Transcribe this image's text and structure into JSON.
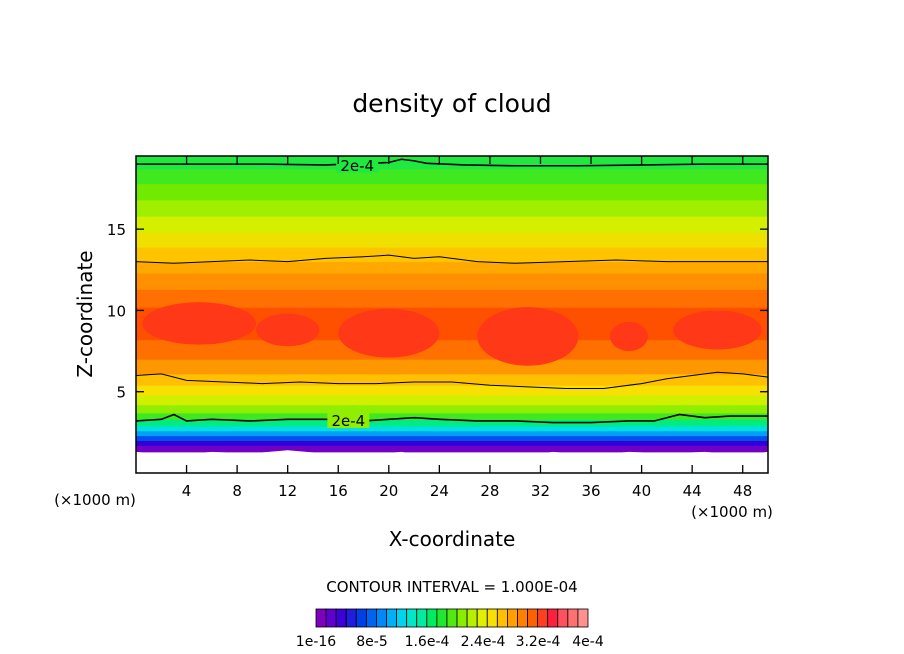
{
  "chart_data": {
    "type": "heatmap",
    "title": "density of cloud",
    "xlabel": "X-coordinate",
    "ylabel": "Z-coordinate",
    "x_unit": "(×1000 m)",
    "z_unit": "(×1000 m)",
    "xlim": [
      0,
      50
    ],
    "ylim": [
      0,
      19.5
    ],
    "x_ticks": [
      4,
      8,
      12,
      16,
      20,
      24,
      28,
      32,
      36,
      40,
      44,
      48
    ],
    "y_ticks": [
      5,
      10,
      15
    ],
    "contour_interval_text": "CONTOUR INTERVAL = 1.000E-04",
    "contour_labels": [
      {
        "text": "2e-4",
        "x": 17.5,
        "z": 18.9
      },
      {
        "text": "2e-4",
        "x": 16.8,
        "z": 3.2
      }
    ],
    "colorbar": {
      "colors": [
        "#8000c0",
        "#6000d0",
        "#3c00d8",
        "#1e1edc",
        "#0040e6",
        "#0064f0",
        "#0088f8",
        "#00b0f8",
        "#00d4ee",
        "#00e8c8",
        "#00eca0",
        "#00ec60",
        "#20e830",
        "#50ea10",
        "#88ee00",
        "#b4f000",
        "#e0f000",
        "#f8e000",
        "#ffc000",
        "#ffa000",
        "#ff8000",
        "#ff6000",
        "#ff4020",
        "#ff2040",
        "#ff5060",
        "#ff7070",
        "#ff9090"
      ],
      "tick_labels": [
        "1e-16",
        "8e-5",
        "1.6e-4",
        "2.4e-4",
        "3.2e-4",
        "4e-4"
      ]
    },
    "bands": [
      {
        "z0": 0.0,
        "z1": 1.3,
        "color": "#ffffff"
      },
      {
        "z0": 1.3,
        "z1": 1.7,
        "color": "#7000c8"
      },
      {
        "z0": 1.7,
        "z1": 2.0,
        "color": "#3000d8"
      },
      {
        "z0": 2.0,
        "z1": 2.3,
        "color": "#0050ea"
      },
      {
        "z0": 2.3,
        "z1": 2.6,
        "color": "#00a0f8"
      },
      {
        "z0": 2.6,
        "z1": 2.9,
        "color": "#00e0e0"
      },
      {
        "z0": 2.9,
        "z1": 3.3,
        "color": "#00ec80"
      },
      {
        "z0": 3.3,
        "z1": 3.7,
        "color": "#40e820"
      },
      {
        "z0": 3.7,
        "z1": 4.2,
        "color": "#90ee00"
      },
      {
        "z0": 4.2,
        "z1": 4.8,
        "color": "#d0f000"
      },
      {
        "z0": 4.8,
        "z1": 5.4,
        "color": "#f8e000"
      },
      {
        "z0": 5.4,
        "z1": 6.1,
        "color": "#ffc000"
      },
      {
        "z0": 6.1,
        "z1": 7.0,
        "color": "#ff9800"
      },
      {
        "z0": 7.0,
        "z1": 8.2,
        "color": "#ff7000"
      },
      {
        "z0": 8.2,
        "z1": 10.2,
        "color": "#ff5000"
      },
      {
        "z0": 10.2,
        "z1": 11.3,
        "color": "#ff7000"
      },
      {
        "z0": 11.3,
        "z1": 12.3,
        "color": "#ff9000"
      },
      {
        "z0": 12.3,
        "z1": 13.0,
        "color": "#ffa800"
      },
      {
        "z0": 13.0,
        "z1": 13.9,
        "color": "#ffc400"
      },
      {
        "z0": 13.9,
        "z1": 14.8,
        "color": "#f0e000"
      },
      {
        "z0": 14.8,
        "z1": 15.8,
        "color": "#d4f000"
      },
      {
        "z0": 15.8,
        "z1": 16.8,
        "color": "#a0ee00"
      },
      {
        "z0": 16.8,
        "z1": 17.8,
        "color": "#70ea00"
      },
      {
        "z0": 17.8,
        "z1": 18.7,
        "color": "#40e820"
      },
      {
        "z0": 18.7,
        "z1": 19.5,
        "color": "#20e840"
      }
    ],
    "cores": [
      {
        "x": 5.0,
        "z": 9.2,
        "rx": 4.5,
        "rz": 1.3,
        "color": "#ff3818"
      },
      {
        "x": 12.0,
        "z": 8.8,
        "rx": 2.5,
        "rz": 1.0,
        "color": "#ff3818"
      },
      {
        "x": 20.0,
        "z": 8.6,
        "rx": 4.0,
        "rz": 1.5,
        "color": "#ff3818"
      },
      {
        "x": 31.0,
        "z": 8.4,
        "rx": 4.0,
        "rz": 1.8,
        "color": "#ff3818"
      },
      {
        "x": 39.0,
        "z": 8.4,
        "rx": 1.5,
        "rz": 0.9,
        "color": "#ff3818"
      },
      {
        "x": 46.0,
        "z": 8.8,
        "rx": 3.5,
        "rz": 1.2,
        "color": "#ff3818"
      }
    ],
    "contour_lines": [
      {
        "name": "upper",
        "x": [
          0,
          5,
          10,
          15,
          20,
          21,
          22,
          23,
          26,
          30,
          35,
          40,
          45,
          50
        ],
        "z": [
          19.0,
          19.0,
          19.0,
          18.95,
          19.1,
          19.3,
          19.2,
          19.05,
          18.95,
          18.9,
          18.9,
          18.95,
          19.0,
          19.0
        ],
        "width": 1.6
      },
      {
        "name": "mid-upper",
        "x": [
          0,
          3,
          6,
          9,
          12,
          15,
          18,
          20,
          22,
          24,
          27,
          30,
          34,
          38,
          42,
          46,
          50
        ],
        "z": [
          13.0,
          12.9,
          13.0,
          13.1,
          13.0,
          13.2,
          13.3,
          13.4,
          13.2,
          13.3,
          13.0,
          12.9,
          13.0,
          13.1,
          13.0,
          13.0,
          13.0
        ],
        "width": 1.0
      },
      {
        "name": "mid-lower",
        "x": [
          0,
          2,
          4,
          7,
          10,
          13,
          16,
          19,
          22,
          25,
          28,
          31,
          34,
          37,
          40,
          42,
          44,
          46,
          48,
          50
        ],
        "z": [
          6.0,
          6.1,
          5.7,
          5.6,
          5.5,
          5.6,
          5.5,
          5.5,
          5.6,
          5.6,
          5.4,
          5.3,
          5.2,
          5.2,
          5.5,
          5.8,
          6.0,
          6.2,
          6.1,
          5.9
        ],
        "width": 1.0
      },
      {
        "name": "lower",
        "x": [
          0,
          2,
          3,
          4,
          6,
          9,
          12,
          15,
          18,
          20,
          22,
          24,
          27,
          30,
          33,
          36,
          39,
          41,
          43,
          45,
          47,
          50
        ],
        "z": [
          3.2,
          3.3,
          3.6,
          3.2,
          3.3,
          3.2,
          3.3,
          3.3,
          3.2,
          3.3,
          3.4,
          3.3,
          3.2,
          3.2,
          3.1,
          3.1,
          3.2,
          3.2,
          3.6,
          3.4,
          3.5,
          3.5
        ],
        "width": 1.6
      }
    ],
    "ground_edge": {
      "x": [
        0,
        3,
        6,
        9,
        12,
        15,
        18,
        21,
        24,
        27,
        30,
        33,
        36,
        39,
        42,
        45,
        48,
        50
      ],
      "z": [
        1.3,
        1.1,
        1.3,
        1.2,
        1.4,
        1.2,
        1.1,
        1.3,
        0.9,
        1.2,
        1.0,
        1.3,
        1.1,
        1.3,
        1.2,
        1.3,
        1.1,
        1.3
      ]
    }
  }
}
